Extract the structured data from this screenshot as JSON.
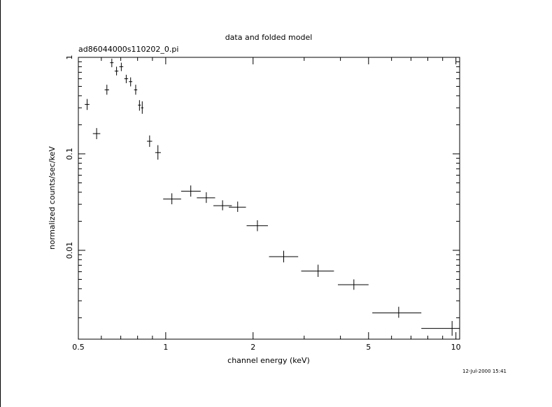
{
  "chart_data": {
    "type": "scatter",
    "title": "data and folded model",
    "subtitle": "ad86044000s110202_0.pi",
    "xlabel": "channel energy (keV)",
    "ylabel": "normalized counts/sec/keV",
    "timestamp": "12-Jul-2000 15:41",
    "x_scale": "log",
    "y_scale": "log",
    "xlim": [
      0.5,
      10.3
    ],
    "ylim": [
      0.0012,
      1.0
    ],
    "x_ticks": [
      {
        "value": 0.5,
        "label": "0.5"
      },
      {
        "value": 1,
        "label": "1"
      },
      {
        "value": 2,
        "label": "2"
      },
      {
        "value": 5,
        "label": "5"
      },
      {
        "value": 10,
        "label": "10"
      }
    ],
    "y_ticks": [
      {
        "value": 1,
        "label": "1"
      },
      {
        "value": 0.1,
        "label": "0.1"
      },
      {
        "value": 0.01,
        "label": "0.01"
      }
    ],
    "grid": false,
    "series": [
      {
        "points": [
          {
            "x": 0.536,
            "xlo": 0.526,
            "xhi": 0.546,
            "y": 0.325,
            "ylo": 0.285,
            "yhi": 0.37
          },
          {
            "x": 0.578,
            "xlo": 0.561,
            "xhi": 0.595,
            "y": 0.162,
            "ylo": 0.142,
            "yhi": 0.185
          },
          {
            "x": 0.627,
            "xlo": 0.616,
            "xhi": 0.638,
            "y": 0.46,
            "ylo": 0.41,
            "yhi": 0.52
          },
          {
            "x": 0.652,
            "xlo": 0.643,
            "xhi": 0.661,
            "y": 0.88,
            "ylo": 0.79,
            "yhi": 0.97
          },
          {
            "x": 0.677,
            "xlo": 0.667,
            "xhi": 0.687,
            "y": 0.72,
            "ylo": 0.65,
            "yhi": 0.8
          },
          {
            "x": 0.703,
            "xlo": 0.692,
            "xhi": 0.714,
            "y": 0.8,
            "ylo": 0.72,
            "yhi": 0.88
          },
          {
            "x": 0.731,
            "xlo": 0.72,
            "xhi": 0.742,
            "y": 0.6,
            "ylo": 0.54,
            "yhi": 0.66
          },
          {
            "x": 0.757,
            "xlo": 0.747,
            "xhi": 0.767,
            "y": 0.56,
            "ylo": 0.5,
            "yhi": 0.62
          },
          {
            "x": 0.788,
            "xlo": 0.778,
            "xhi": 0.798,
            "y": 0.46,
            "ylo": 0.41,
            "yhi": 0.52
          },
          {
            "x": 0.812,
            "xlo": 0.803,
            "xhi": 0.821,
            "y": 0.32,
            "ylo": 0.28,
            "yhi": 0.36
          },
          {
            "x": 0.83,
            "xlo": 0.822,
            "xhi": 0.838,
            "y": 0.3,
            "ylo": 0.26,
            "yhi": 0.35
          },
          {
            "x": 0.88,
            "xlo": 0.862,
            "xhi": 0.898,
            "y": 0.135,
            "ylo": 0.118,
            "yhi": 0.155
          },
          {
            "x": 0.94,
            "xlo": 0.92,
            "xhi": 0.962,
            "y": 0.103,
            "ylo": 0.087,
            "yhi": 0.123
          },
          {
            "x": 1.05,
            "xlo": 0.98,
            "xhi": 1.13,
            "y": 0.034,
            "ylo": 0.03,
            "yhi": 0.039
          },
          {
            "x": 1.22,
            "xlo": 1.13,
            "xhi": 1.32,
            "y": 0.041,
            "ylo": 0.036,
            "yhi": 0.047
          },
          {
            "x": 1.38,
            "xlo": 1.28,
            "xhi": 1.48,
            "y": 0.035,
            "ylo": 0.031,
            "yhi": 0.04
          },
          {
            "x": 1.57,
            "xlo": 1.46,
            "xhi": 1.69,
            "y": 0.029,
            "ylo": 0.026,
            "yhi": 0.033
          },
          {
            "x": 1.77,
            "xlo": 1.65,
            "xhi": 1.89,
            "y": 0.028,
            "ylo": 0.025,
            "yhi": 0.032
          },
          {
            "x": 2.07,
            "xlo": 1.9,
            "xhi": 2.25,
            "y": 0.018,
            "ylo": 0.0158,
            "yhi": 0.0205
          },
          {
            "x": 2.55,
            "xlo": 2.27,
            "xhi": 2.86,
            "y": 0.0086,
            "ylo": 0.0075,
            "yhi": 0.0099
          },
          {
            "x": 3.35,
            "xlo": 2.93,
            "xhi": 3.8,
            "y": 0.0061,
            "ylo": 0.0053,
            "yhi": 0.0071
          },
          {
            "x": 4.45,
            "xlo": 3.92,
            "xhi": 5.0,
            "y": 0.0044,
            "ylo": 0.0039,
            "yhi": 0.005
          },
          {
            "x": 6.35,
            "xlo": 5.15,
            "xhi": 7.6,
            "y": 0.00225,
            "ylo": 0.002,
            "yhi": 0.0026
          },
          {
            "x": 9.7,
            "xlo": 7.6,
            "xhi": 10.3,
            "y": 0.00155,
            "ylo": 0.0013,
            "yhi": 0.00185
          }
        ]
      }
    ]
  }
}
